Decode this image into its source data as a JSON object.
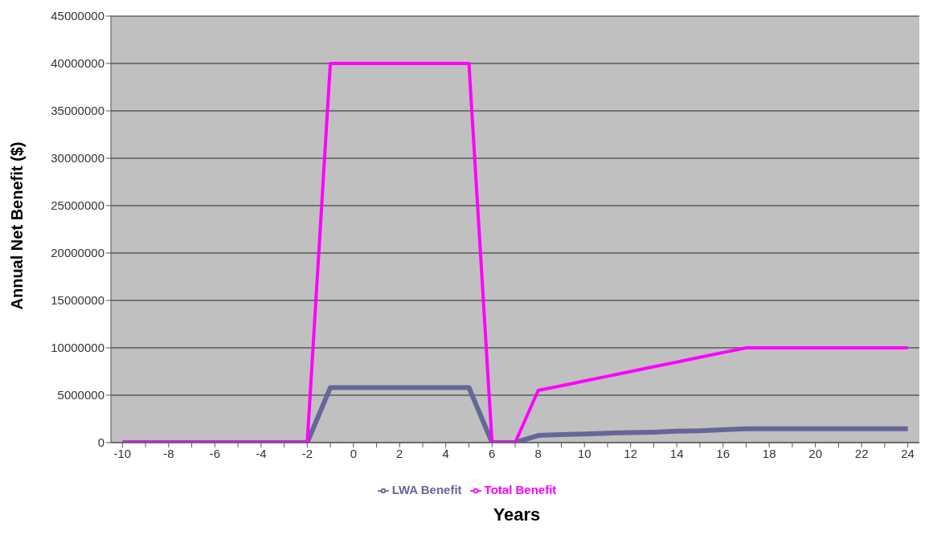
{
  "chart_data": {
    "type": "line",
    "xlabel": "Years",
    "ylabel": "Annual Net Benefit ($)",
    "x": [
      -10,
      -9,
      -8,
      -7,
      -6,
      -5,
      -4,
      -3,
      -2,
      -1,
      0,
      1,
      2,
      3,
      4,
      5,
      6,
      7,
      8,
      9,
      10,
      11,
      12,
      13,
      14,
      15,
      16,
      17,
      18,
      19,
      20,
      21,
      22,
      23,
      24
    ],
    "series": [
      {
        "name": "LWA Benefit",
        "color": "#666699",
        "values": [
          0,
          0,
          0,
          0,
          0,
          0,
          0,
          0,
          0,
          5800000,
          5800000,
          5800000,
          5800000,
          5800000,
          5800000,
          5800000,
          0,
          0,
          750000,
          850000,
          900000,
          1000000,
          1050000,
          1100000,
          1200000,
          1250000,
          1350000,
          1450000,
          1450000,
          1450000,
          1450000,
          1450000,
          1450000,
          1450000,
          1450000
        ]
      },
      {
        "name": "Total Benefit",
        "color": "#ff00ff",
        "values": [
          0,
          0,
          0,
          0,
          0,
          0,
          0,
          0,
          0,
          40000000,
          40000000,
          40000000,
          40000000,
          40000000,
          40000000,
          40000000,
          0,
          0,
          5500000,
          6000000,
          6500000,
          7000000,
          7500000,
          8000000,
          8500000,
          9000000,
          9500000,
          10000000,
          10000000,
          10000000,
          10000000,
          10000000,
          10000000,
          10000000,
          10000000
        ]
      }
    ],
    "xlim": [
      -10.5,
      24.5
    ],
    "xticks": [
      -10,
      {
        "value": -9,
        "label": null
      },
      -8,
      {
        "value": -7,
        "label": null
      },
      -6,
      {
        "value": -5,
        "label": null
      },
      -4,
      {
        "value": -3,
        "label": null
      },
      -2,
      {
        "value": -1,
        "label": null
      },
      0,
      {
        "value": 1,
        "label": null
      },
      2,
      {
        "value": 3,
        "label": null
      },
      4,
      {
        "value": 5,
        "label": null
      },
      6,
      {
        "value": 7,
        "label": null
      },
      8,
      {
        "value": 9,
        "label": null
      },
      10,
      {
        "value": 11,
        "label": null
      },
      12,
      {
        "value": 13,
        "label": null
      },
      14,
      {
        "value": 15,
        "label": null
      },
      16,
      {
        "value": 17,
        "label": null
      },
      18,
      {
        "value": 19,
        "label": null
      },
      20,
      {
        "value": 21,
        "label": null
      },
      22,
      {
        "value": 23,
        "label": null
      },
      24
    ],
    "ylim": [
      0,
      45000000
    ],
    "yticks": [
      0,
      5000000,
      10000000,
      15000000,
      20000000,
      25000000,
      30000000,
      35000000,
      40000000,
      45000000
    ],
    "grid": "y",
    "legend": "bottom",
    "marker": "none",
    "line_style": "solid"
  }
}
